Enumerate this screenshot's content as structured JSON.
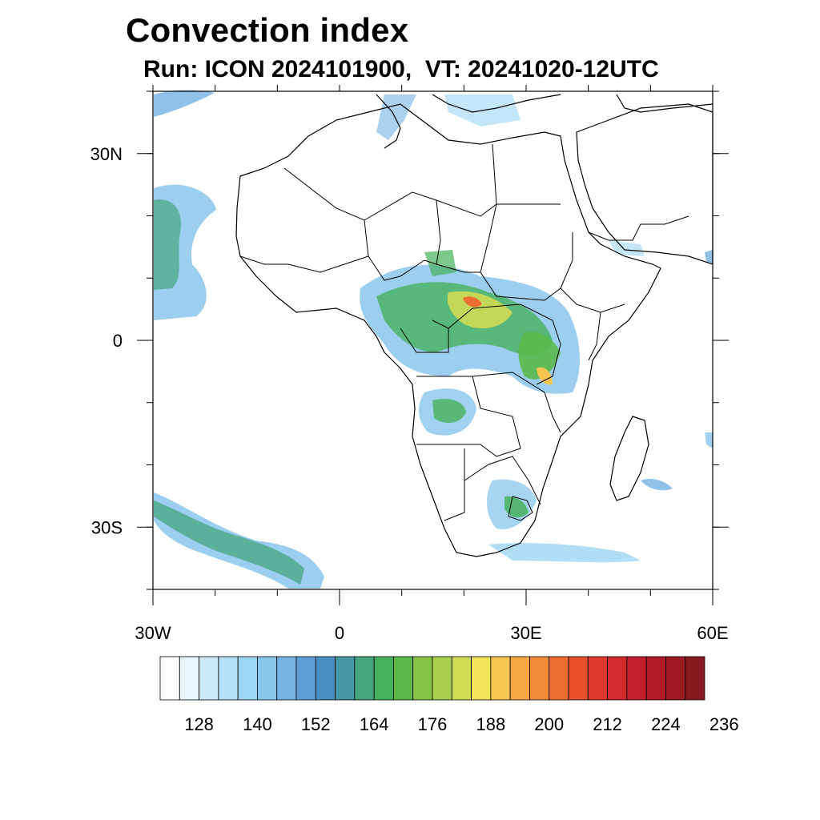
{
  "title": "Convection index",
  "subtitle": "Run: ICON 2024101900,  VT: 20241020-12UTC",
  "map": {
    "lon_range": [
      -30,
      60
    ],
    "lat_range": [
      -40,
      40
    ],
    "lat_ticks": [
      {
        "value": 30,
        "label": "30N"
      },
      {
        "value": 0,
        "label": "0"
      },
      {
        "value": -30,
        "label": "30S"
      }
    ],
    "lon_ticks": [
      {
        "value": -30,
        "label": "30W"
      },
      {
        "value": 0,
        "label": "0"
      },
      {
        "value": 30,
        "label": "30E"
      },
      {
        "value": 60,
        "label": "60E"
      }
    ]
  },
  "colorbar": {
    "colors": [
      "#ffffff",
      "#e8f5fc",
      "#cbe9f8",
      "#b6e0f6",
      "#9dd6f4",
      "#8ac6ec",
      "#74b3e3",
      "#5d9fd6",
      "#4a8fc4",
      "#4597a3",
      "#46a57f",
      "#47b15d",
      "#5ab949",
      "#88c447",
      "#a9cf4e",
      "#cfdb55",
      "#f0e35a",
      "#f8c551",
      "#f7a744",
      "#f38b3a",
      "#ee6d30",
      "#e6512b",
      "#dd3a2b",
      "#d02a2d",
      "#c21e2d",
      "#b01a28",
      "#9c1823",
      "#88181f"
    ],
    "labels": [
      "128",
      "140",
      "152",
      "164",
      "176",
      "188",
      "200",
      "212",
      "224",
      "236"
    ]
  }
}
